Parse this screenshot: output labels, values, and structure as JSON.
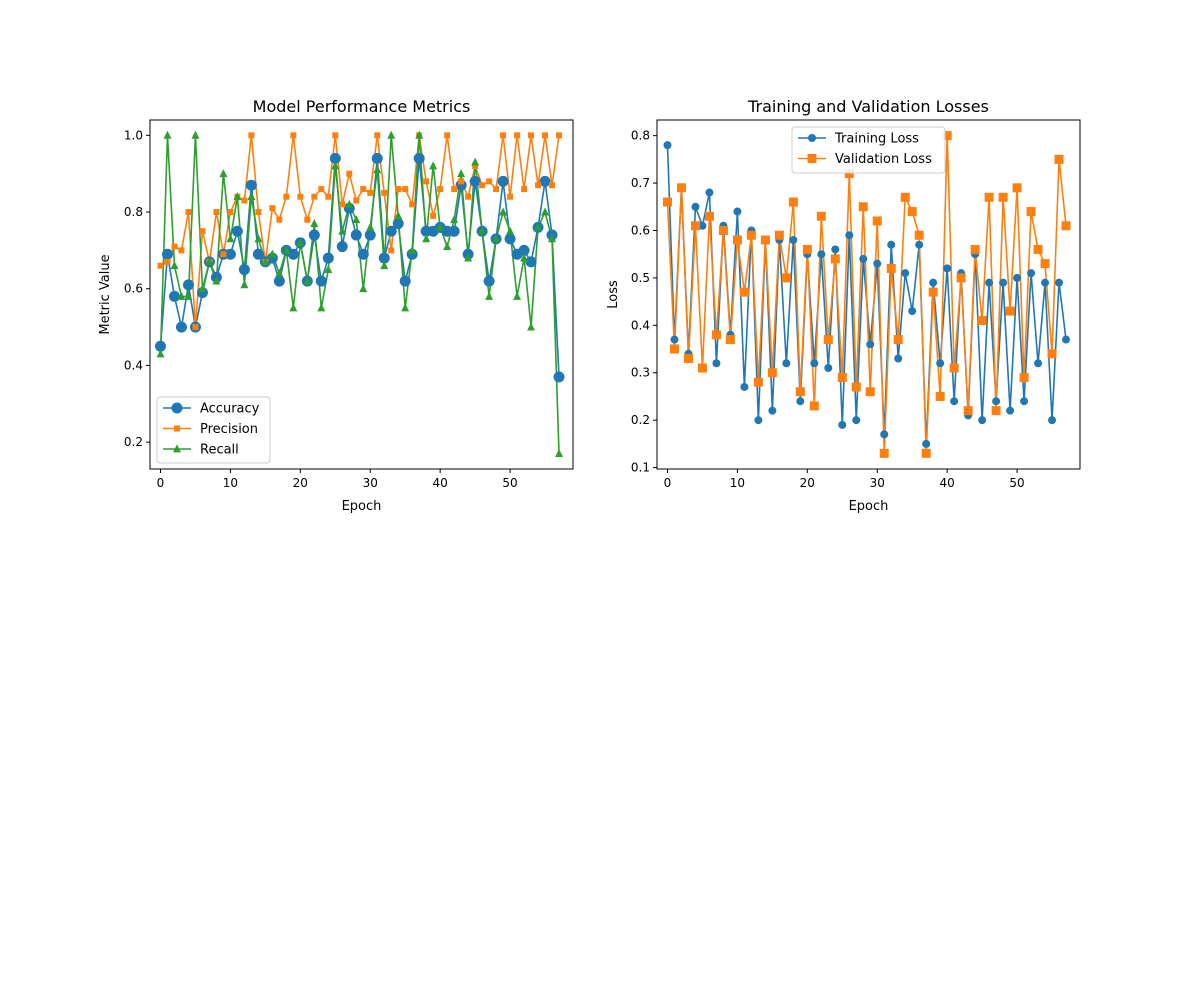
{
  "chart_data": [
    {
      "type": "line",
      "title": "Model Performance Metrics",
      "xlabel": "Epoch",
      "ylabel": "Metric Value",
      "xlim": [
        -1.5,
        59
      ],
      "ylim": [
        0.13,
        1.04
      ],
      "xticks": [
        0,
        10,
        20,
        30,
        40,
        50
      ],
      "yticks": [
        0.2,
        0.4,
        0.6,
        0.8,
        1.0
      ],
      "grid": false,
      "legend_loc": "lower left",
      "x": [
        0,
        1,
        2,
        3,
        4,
        5,
        6,
        7,
        8,
        9,
        10,
        11,
        12,
        13,
        14,
        15,
        16,
        17,
        18,
        19,
        20,
        21,
        22,
        23,
        24,
        25,
        26,
        27,
        28,
        29,
        30,
        31,
        32,
        33,
        34,
        35,
        36,
        37,
        38,
        39,
        40,
        41,
        42,
        43,
        44,
        45,
        46,
        47,
        48,
        49,
        50,
        51,
        52,
        53,
        54,
        55,
        56,
        57
      ],
      "series": [
        {
          "name": "Accuracy",
          "color": "#1f77b4",
          "marker": "circle",
          "values": [
            0.45,
            0.69,
            0.58,
            0.5,
            0.61,
            0.5,
            0.59,
            0.67,
            0.63,
            0.69,
            0.69,
            0.75,
            0.65,
            0.87,
            0.69,
            0.67,
            0.68,
            0.62,
            0.7,
            0.69,
            0.72,
            0.62,
            0.74,
            0.62,
            0.68,
            0.94,
            0.71,
            0.81,
            0.74,
            0.69,
            0.74,
            0.94,
            0.68,
            0.75,
            0.77,
            0.62,
            0.69,
            0.94,
            0.75,
            0.75,
            0.76,
            0.75,
            0.75,
            0.87,
            0.69,
            0.88,
            0.75,
            0.62,
            0.73,
            0.88,
            0.73,
            0.69,
            0.7,
            0.67,
            0.76,
            0.88,
            0.74,
            0.37
          ]
        },
        {
          "name": "Precision",
          "color": "#ff7f0e",
          "marker": "square",
          "values": [
            0.66,
            0.67,
            0.71,
            0.7,
            0.8,
            0.5,
            0.75,
            0.67,
            0.8,
            0.69,
            0.8,
            0.84,
            0.83,
            1.0,
            0.8,
            0.67,
            0.81,
            0.78,
            0.84,
            1.0,
            0.84,
            0.78,
            0.84,
            0.86,
            0.84,
            1.0,
            0.82,
            0.9,
            0.83,
            0.86,
            0.85,
            1.0,
            0.85,
            0.7,
            0.86,
            0.86,
            0.82,
            1.0,
            0.88,
            0.79,
            0.86,
            1.0,
            0.86,
            0.88,
            0.84,
            0.92,
            0.87,
            0.88,
            0.86,
            1.0,
            0.84,
            1.0,
            0.86,
            1.0,
            0.87,
            1.0,
            0.87,
            1.0
          ]
        },
        {
          "name": "Recall",
          "color": "#2ca02c",
          "marker": "triangle",
          "values": [
            0.43,
            1.0,
            0.66,
            0.58,
            0.58,
            1.0,
            0.6,
            0.67,
            0.62,
            0.9,
            0.73,
            0.84,
            0.61,
            0.84,
            0.73,
            0.67,
            0.69,
            0.64,
            0.7,
            0.55,
            0.72,
            0.62,
            0.77,
            0.55,
            0.65,
            0.92,
            0.75,
            0.82,
            0.78,
            0.6,
            0.76,
            0.91,
            0.66,
            1.0,
            0.79,
            0.55,
            0.7,
            1.0,
            0.73,
            0.92,
            0.76,
            0.71,
            0.78,
            0.9,
            0.68,
            0.93,
            0.75,
            0.58,
            0.73,
            0.8,
            0.75,
            0.58,
            0.68,
            0.5,
            0.76,
            0.8,
            0.73,
            0.17
          ]
        }
      ]
    },
    {
      "type": "line",
      "title": "Training and Validation Losses",
      "xlabel": "Epoch",
      "ylabel": "Loss",
      "xlim": [
        -1.5,
        59
      ],
      "ylim": [
        0.097,
        0.833
      ],
      "xticks": [
        0,
        10,
        20,
        30,
        40,
        50
      ],
      "yticks": [
        0.1,
        0.2,
        0.3,
        0.4,
        0.5,
        0.6,
        0.7,
        0.8
      ],
      "grid": false,
      "legend_loc": "upper center",
      "x": [
        0,
        1,
        2,
        3,
        4,
        5,
        6,
        7,
        8,
        9,
        10,
        11,
        12,
        13,
        14,
        15,
        16,
        17,
        18,
        19,
        20,
        21,
        22,
        23,
        24,
        25,
        26,
        27,
        28,
        29,
        30,
        31,
        32,
        33,
        34,
        35,
        36,
        37,
        38,
        39,
        40,
        41,
        42,
        43,
        44,
        45,
        46,
        47,
        48,
        49,
        50,
        51,
        52,
        53,
        54,
        55,
        56,
        57
      ],
      "series": [
        {
          "name": "Training Loss",
          "color": "#1f77b4",
          "marker": "circle",
          "values": [
            0.78,
            0.37,
            0.69,
            0.34,
            0.65,
            0.61,
            0.68,
            0.32,
            0.61,
            0.38,
            0.64,
            0.27,
            0.6,
            0.2,
            0.58,
            0.22,
            0.58,
            0.32,
            0.58,
            0.24,
            0.55,
            0.32,
            0.55,
            0.31,
            0.56,
            0.19,
            0.59,
            0.2,
            0.54,
            0.36,
            0.53,
            0.17,
            0.57,
            0.33,
            0.51,
            0.43,
            0.57,
            0.15,
            0.49,
            0.32,
            0.52,
            0.24,
            0.51,
            0.21,
            0.55,
            0.2,
            0.49,
            0.24,
            0.49,
            0.22,
            0.5,
            0.24,
            0.51,
            0.32,
            0.49,
            0.2,
            0.49,
            0.37
          ]
        },
        {
          "name": "Validation Loss",
          "color": "#ff7f0e",
          "marker": "square",
          "values": [
            0.66,
            0.35,
            0.69,
            0.33,
            0.61,
            0.31,
            0.63,
            0.38,
            0.6,
            0.37,
            0.58,
            0.47,
            0.59,
            0.28,
            0.58,
            0.3,
            0.59,
            0.5,
            0.66,
            0.26,
            0.56,
            0.23,
            0.63,
            0.37,
            0.54,
            0.29,
            0.72,
            0.27,
            0.65,
            0.26,
            0.62,
            0.13,
            0.52,
            0.37,
            0.67,
            0.64,
            0.59,
            0.13,
            0.47,
            0.25,
            0.8,
            0.31,
            0.5,
            0.22,
            0.56,
            0.41,
            0.67,
            0.22,
            0.67,
            0.43,
            0.69,
            0.29,
            0.64,
            0.56,
            0.53,
            0.34,
            0.75,
            0.61
          ]
        }
      ]
    }
  ]
}
